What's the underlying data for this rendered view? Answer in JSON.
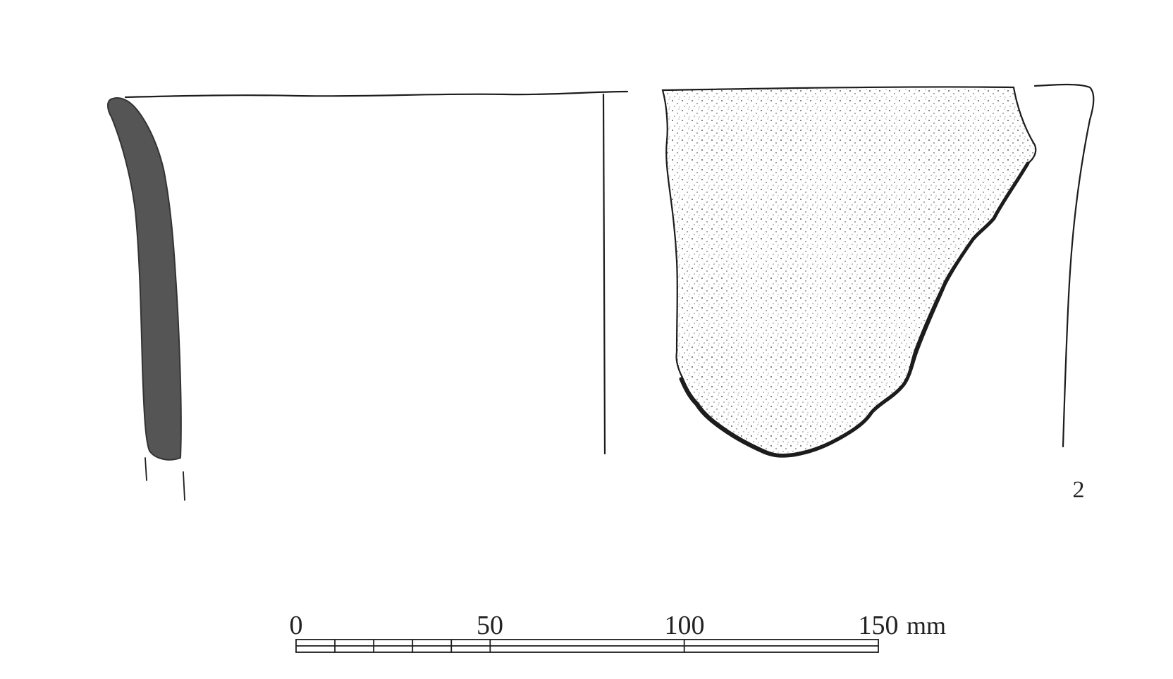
{
  "figure": {
    "number": "2"
  },
  "scale": {
    "unit": "mm",
    "tick_labels": [
      "0",
      "50",
      "100",
      "150"
    ],
    "max_value": 150,
    "minor_divisions_0_to_50": 5
  },
  "colors": {
    "ink": "#1c1c1c",
    "section_fill": "#555555",
    "sherd_stipple": "#2a2a2a"
  }
}
